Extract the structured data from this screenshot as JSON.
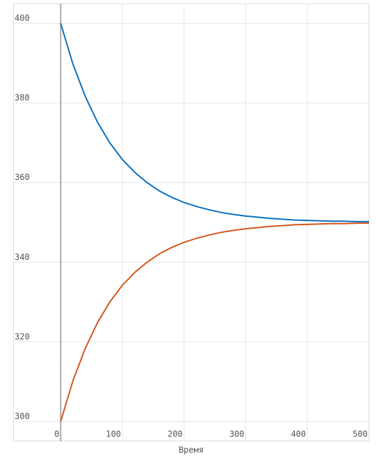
{
  "chart_data": {
    "type": "line",
    "x_label": "Время",
    "x": [
      0,
      20,
      40,
      60,
      80,
      100,
      120,
      140,
      160,
      180,
      200,
      220,
      240,
      260,
      280,
      300,
      320,
      340,
      360,
      380,
      400,
      420,
      440,
      460,
      480,
      500
    ],
    "series": [
      {
        "color": "#0a6fbd",
        "values": [
          400,
          389.7,
          381.6,
          375.1,
          369.9,
          365.8,
          362.6,
          360.0,
          357.9,
          356.3,
          355.0,
          354.0,
          353.2,
          352.5,
          352.0,
          351.6,
          351.3,
          351.0,
          350.8,
          350.6,
          350.5,
          350.4,
          350.3,
          350.3,
          350.2,
          350.2
        ]
      },
      {
        "color": "#d4561c",
        "values": [
          300,
          310.3,
          318.4,
          324.9,
          330.1,
          334.2,
          337.4,
          340.0,
          342.1,
          343.7,
          345.0,
          346.0,
          346.8,
          347.5,
          348.0,
          348.4,
          348.7,
          349.0,
          349.2,
          349.4,
          349.5,
          349.6,
          349.7,
          349.7,
          349.8,
          349.8
        ]
      }
    ],
    "xlim": [
      -77,
      500
    ],
    "ylim": [
      295,
      405
    ],
    "xticks": [
      0,
      100,
      200,
      300,
      400,
      500
    ],
    "yticks": [
      300,
      320,
      340,
      360,
      380,
      400
    ],
    "grid": true
  }
}
